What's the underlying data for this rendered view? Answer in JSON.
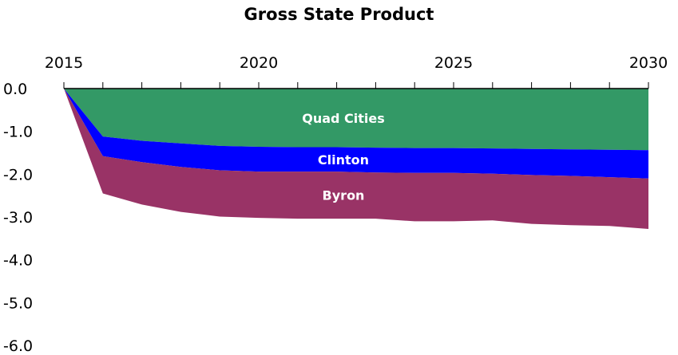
{
  "chart_data": {
    "type": "area",
    "title": "Gross State Product",
    "xlabel": "",
    "ylabel": "",
    "x": [
      2015,
      2016,
      2017,
      2018,
      2019,
      2020,
      2021,
      2022,
      2023,
      2024,
      2025,
      2026,
      2027,
      2028,
      2029,
      2030
    ],
    "xlim": [
      2015,
      2030
    ],
    "ylim": [
      -6.0,
      0.0
    ],
    "x_axis_position": "top",
    "x_ticks": [
      "2015",
      "2020",
      "2025",
      "2030"
    ],
    "y_ticks": [
      "0.0",
      "-1.0",
      "-2.0",
      "-3.0",
      "-4.0",
      "-5.0",
      "-6.0"
    ],
    "grid": false,
    "stacked": true,
    "series": [
      {
        "name": "Quad Cities",
        "color": "#339966",
        "values": [
          0.0,
          -1.12,
          -1.22,
          -1.28,
          -1.34,
          -1.36,
          -1.37,
          -1.37,
          -1.38,
          -1.39,
          -1.39,
          -1.4,
          -1.41,
          -1.42,
          -1.43,
          -1.44
        ]
      },
      {
        "name": "Clinton",
        "color": "#0000ff",
        "values": [
          0.0,
          -0.46,
          -0.5,
          -0.55,
          -0.57,
          -0.58,
          -0.57,
          -0.57,
          -0.58,
          -0.58,
          -0.58,
          -0.59,
          -0.61,
          -0.62,
          -0.64,
          -0.66
        ]
      },
      {
        "name": "Byron",
        "color": "#993366",
        "values": [
          0.0,
          -0.87,
          -0.99,
          -1.05,
          -1.08,
          -1.08,
          -1.1,
          -1.1,
          -1.08,
          -1.13,
          -1.13,
          -1.09,
          -1.14,
          -1.15,
          -1.14,
          -1.18
        ]
      }
    ]
  }
}
